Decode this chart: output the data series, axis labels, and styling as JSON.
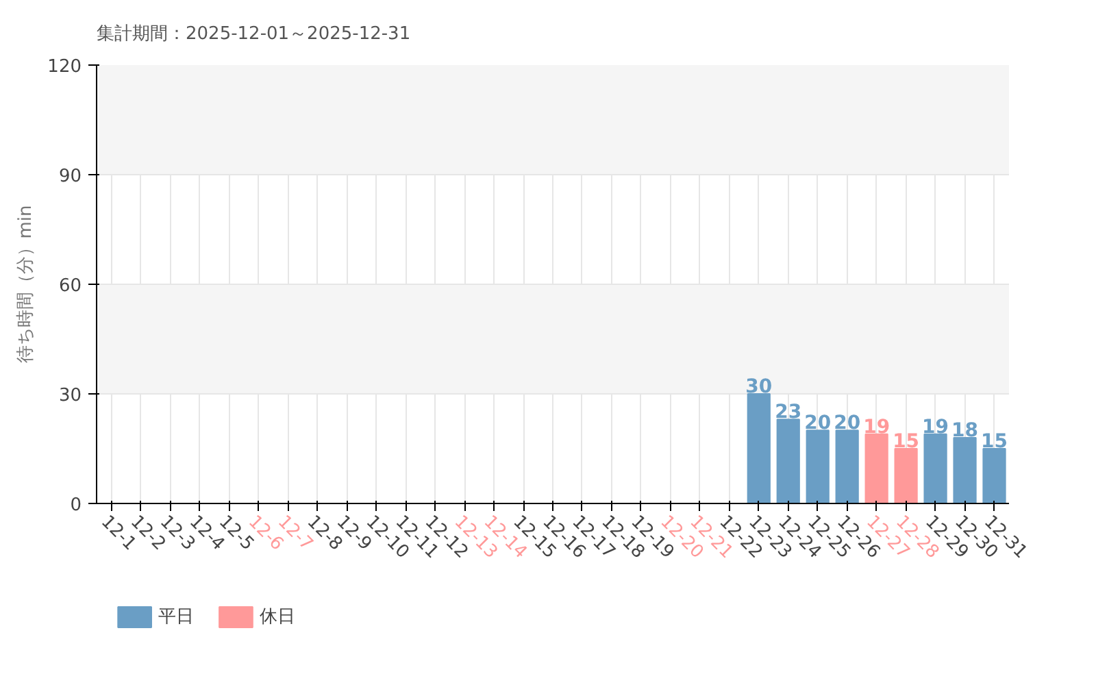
{
  "chart_data": {
    "type": "bar",
    "title": "集計期間：2025-12-01～2025-12-31",
    "ylabel": "待ち時間（分）min",
    "categories": [
      "12-1",
      "12-2",
      "12-3",
      "12-4",
      "12-5",
      "12-6",
      "12-7",
      "12-8",
      "12-9",
      "12-10",
      "12-11",
      "12-12",
      "12-13",
      "12-14",
      "12-15",
      "12-16",
      "12-17",
      "12-18",
      "12-19",
      "12-20",
      "12-21",
      "12-22",
      "12-23",
      "12-24",
      "12-25",
      "12-26",
      "12-27",
      "12-28",
      "12-29",
      "12-30",
      "12-31"
    ],
    "colors": [
      "#6a9ec5",
      "#6a9ec5",
      "#6a9ec5",
      "#6a9ec5",
      "#6a9ec5",
      "#ff9999",
      "#ff9999",
      "#6a9ec5",
      "#6a9ec5",
      "#6a9ec5",
      "#6a9ec5",
      "#6a9ec5",
      "#ff9999",
      "#ff9999",
      "#6a9ec5",
      "#6a9ec5",
      "#6a9ec5",
      "#6a9ec5",
      "#6a9ec5",
      "#ff9999",
      "#ff9999",
      "#6a9ec5",
      "#6a9ec5",
      "#6a9ec5",
      "#6a9ec5",
      "#6a9ec5",
      "#ff9999",
      "#ff9999",
      "#6a9ec5",
      "#6a9ec5",
      "#6a9ec5"
    ],
    "series": [
      {
        "name": "平日",
        "color": "#6a9ec5",
        "values": [
          null,
          null,
          null,
          null,
          null,
          null,
          null,
          null,
          null,
          null,
          null,
          null,
          null,
          null,
          null,
          null,
          null,
          null,
          null,
          null,
          null,
          null,
          30,
          23,
          20,
          20,
          null,
          null,
          19,
          18,
          15
        ]
      },
      {
        "name": "休日",
        "color": "#ff9999",
        "values": [
          null,
          null,
          null,
          null,
          null,
          null,
          null,
          null,
          null,
          null,
          null,
          null,
          null,
          null,
          null,
          null,
          null,
          null,
          null,
          null,
          null,
          null,
          null,
          null,
          null,
          null,
          19,
          15,
          null,
          null,
          null
        ]
      }
    ],
    "ylim": [
      0,
      120
    ],
    "yticks": [
      0,
      30,
      60,
      90,
      120
    ],
    "grid": true,
    "legend": "bottom left",
    "data_labels": true
  }
}
